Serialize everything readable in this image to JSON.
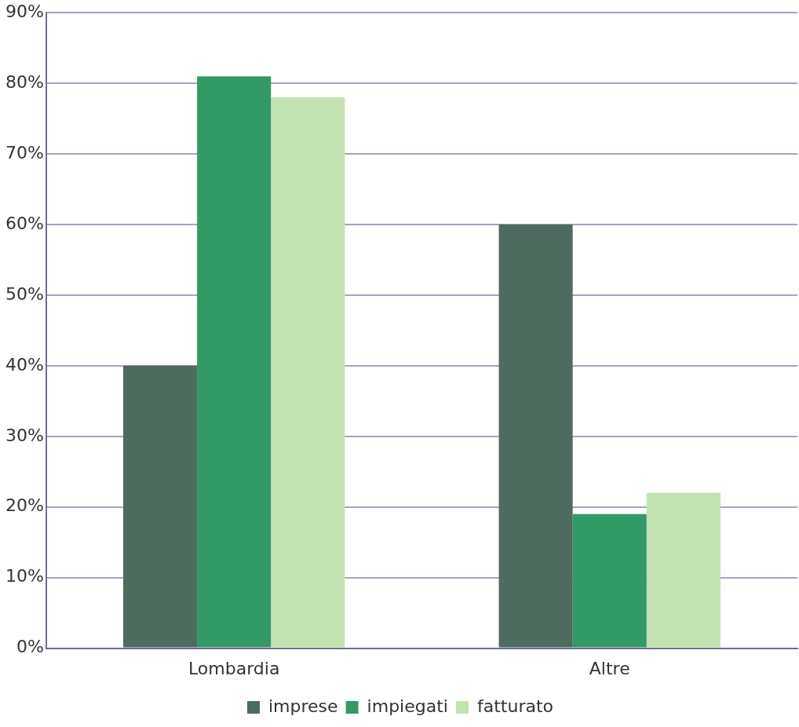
{
  "chart_data": {
    "type": "bar",
    "categories": [
      "Lombardia",
      "Altre"
    ],
    "series": [
      {
        "name": "imprese",
        "color": "#4d6b5e",
        "values": [
          40,
          60
        ]
      },
      {
        "name": "impiegati",
        "color": "#339966",
        "values": [
          81,
          19
        ]
      },
      {
        "name": "fatturato",
        "color": "#c2e3b0",
        "values": [
          78,
          22
        ]
      }
    ],
    "ylim": [
      0,
      90
    ],
    "yticks": [
      {
        "value": 0,
        "label": "0%"
      },
      {
        "value": 10,
        "label": "10%"
      },
      {
        "value": 20,
        "label": "20%"
      },
      {
        "value": 30,
        "label": "30%"
      },
      {
        "value": 40,
        "label": "40%"
      },
      {
        "value": 50,
        "label": "50%"
      },
      {
        "value": 60,
        "label": "60%"
      },
      {
        "value": 70,
        "label": "70%"
      },
      {
        "value": 80,
        "label": "80%"
      },
      {
        "value": 90,
        "label": "90%"
      }
    ],
    "grid": "y",
    "legend": "bottom"
  }
}
